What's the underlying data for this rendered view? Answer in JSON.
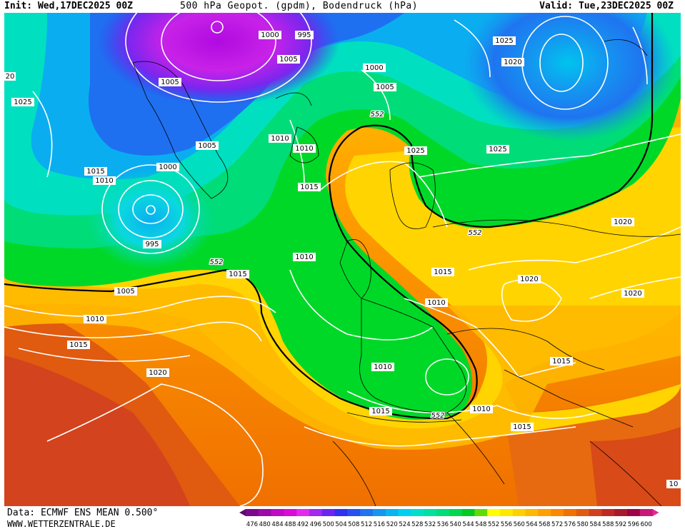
{
  "header": {
    "init": "Init: Wed,17DEC2025 00Z",
    "title": "500 hPa Geopot. (gpdm), Bodendruck (hPa)",
    "valid": "Valid: Tue,23DEC2025 00Z"
  },
  "footer": {
    "data_source": "Data: ECMWF ENS MEAN 0.500°",
    "website": "WWW.WETTERZENTRALE.DE"
  },
  "colorbar": {
    "ticks": [
      "476",
      "480",
      "484",
      "488",
      "492",
      "496",
      "500",
      "504",
      "508",
      "512",
      "516",
      "520",
      "524",
      "528",
      "532",
      "536",
      "540",
      "544",
      "548",
      "552",
      "556",
      "560",
      "564",
      "568",
      "572",
      "576",
      "580",
      "584",
      "588",
      "592",
      "596",
      "600"
    ],
    "colors": [
      "#5a0a6e",
      "#7a0a8c",
      "#9c0aa8",
      "#c00ac4",
      "#dc0ad8",
      "#e22aee",
      "#a02af0",
      "#6a26f0",
      "#3030f0",
      "#2850f0",
      "#1f74f0",
      "#1496f0",
      "#0ab4f0",
      "#00d0f0",
      "#00e0c8",
      "#00e0a0",
      "#00dc78",
      "#00d850",
      "#00cc20",
      "#60dc00",
      "#ffff00",
      "#ffe800",
      "#ffd000",
      "#ffb800",
      "#ffa000",
      "#fa8800",
      "#f07000",
      "#e05a10",
      "#d04020",
      "#c02828",
      "#a81a2a",
      "#a00048",
      "#c81878",
      "#e02a98"
    ]
  },
  "map": {
    "isobar_labels": [
      {
        "text": "1000",
        "id": "n-atl-1000a"
      },
      {
        "text": "995",
        "id": "n-atl-995a"
      },
      {
        "text": "1005",
        "id": "greenland-1005a"
      },
      {
        "text": "1005",
        "id": "greenland-1005b"
      },
      {
        "text": "1000",
        "id": "iceland-1000"
      },
      {
        "text": "1005",
        "id": "iceland-1005"
      },
      {
        "text": "1025",
        "id": "arctic-1025a"
      },
      {
        "text": "1020",
        "id": "arctic-1020"
      },
      {
        "text": "20",
        "id": "west-20"
      },
      {
        "text": "1025",
        "id": "west-1025"
      },
      {
        "text": "1010",
        "id": "iceland-1010"
      },
      {
        "text": "1010",
        "id": "faroe-1010"
      },
      {
        "text": "1005",
        "id": "atl-1005a"
      },
      {
        "text": "1015",
        "id": "atl-1015a"
      },
      {
        "text": "1010",
        "id": "atl-1010a"
      },
      {
        "text": "1000",
        "id": "atl-1000"
      },
      {
        "text": "995",
        "id": "atl-995b"
      },
      {
        "text": "552",
        "id": "contour-552a"
      },
      {
        "text": "1025",
        "id": "scand-1025"
      },
      {
        "text": "1025",
        "id": "russia-1025"
      },
      {
        "text": "1015",
        "id": "uk-1015"
      },
      {
        "text": "552",
        "id": "contour-552b"
      },
      {
        "text": "1020",
        "id": "east-1020a"
      },
      {
        "text": "552",
        "id": "contour-552c"
      },
      {
        "text": "1015",
        "id": "atl-1015b"
      },
      {
        "text": "1010",
        "id": "atl-1010b"
      },
      {
        "text": "1015",
        "id": "central-1015"
      },
      {
        "text": "1020",
        "id": "central-1020"
      },
      {
        "text": "1005",
        "id": "atl-1005b"
      },
      {
        "text": "1020",
        "id": "east-1020b"
      },
      {
        "text": "1010",
        "id": "atl-1010c"
      },
      {
        "text": "1010",
        "id": "alps-1010"
      },
      {
        "text": "1015",
        "id": "atl-1015c"
      },
      {
        "text": "1015",
        "id": "balkan-1015"
      },
      {
        "text": "1020",
        "id": "azores-1020"
      },
      {
        "text": "1010",
        "id": "iberia-1010"
      },
      {
        "text": "1015",
        "id": "iberia-1015"
      },
      {
        "text": "552",
        "id": "contour-552d"
      },
      {
        "text": "1010",
        "id": "italy-1010"
      },
      {
        "text": "1015",
        "id": "med-1015"
      },
      {
        "text": "10",
        "id": "east-10"
      }
    ]
  }
}
